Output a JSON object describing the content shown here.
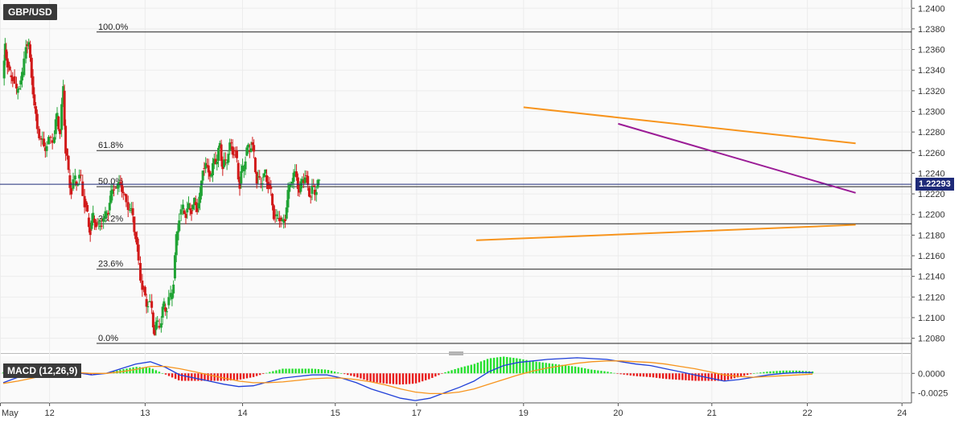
{
  "symbol": "GBP/USD",
  "last_price": "1.22293",
  "chart_data": [
    {
      "type": "candlestick",
      "title": "GBP/USD",
      "x_tick_labels": [
        "May",
        "12",
        "13",
        "14",
        "15",
        "17",
        "19",
        "20",
        "21",
        "22",
        "24"
      ],
      "y_tick_labels": [
        "1.2080",
        "1.2100",
        "1.2120",
        "1.2140",
        "1.2160",
        "1.2180",
        "1.2200",
        "1.2220",
        "1.2240",
        "1.2260",
        "1.2280",
        "1.2300",
        "1.2320",
        "1.2340",
        "1.2360",
        "1.2380",
        "1.2400"
      ],
      "ylim": [
        1.2068,
        1.2408
      ],
      "last_price": 1.22293,
      "candle_colors": {
        "up": "#21a335",
        "down": "#d11a1a"
      },
      "fibonacci_levels": [
        {
          "label": "100.0%",
          "price": 1.2377
        },
        {
          "label": "61.8%",
          "price": 1.2262
        },
        {
          "label": "50.0%",
          "price": 1.2227
        },
        {
          "label": "38.2%",
          "price": 1.2191
        },
        {
          "label": "23.6%",
          "price": 1.2147
        },
        {
          "label": "0.0%",
          "price": 1.2075
        }
      ],
      "trendlines": [
        {
          "name": "upper-triangle-line",
          "color": "#f7941d",
          "start": {
            "date": "May 19",
            "price": 1.2304
          },
          "end": {
            "date": "May 22",
            "price": 1.2269
          }
        },
        {
          "name": "lower-triangle-line",
          "color": "#f7941d",
          "start": {
            "date": "May 18",
            "price": 1.2175
          },
          "end": {
            "date": "May 22",
            "price": 1.219
          }
        },
        {
          "name": "resistance-line",
          "color": "#9b1c96",
          "start": {
            "date": "May 20",
            "price": 1.2288
          },
          "end": {
            "date": "May 22",
            "price": 1.2221
          }
        }
      ],
      "segments": [
        {
          "from": "May 11",
          "points": [
            [
              0,
              1.2332
            ],
            [
              0.02,
              1.236
            ],
            [
              0.045,
              1.2348
            ],
            [
              0.07,
              1.2335
            ],
            [
              0.1,
              1.2334
            ],
            [
              0.14,
              1.2318
            ],
            [
              0.17,
              1.2326
            ],
            [
              0.2,
              1.2335
            ],
            [
              0.24,
              1.2365
            ],
            [
              0.27,
              1.2365
            ],
            [
              0.3,
              1.2334
            ],
            [
              0.33,
              1.2305
            ],
            [
              0.36,
              1.2283
            ],
            [
              0.4,
              1.2273
            ],
            [
              0.43,
              1.2265
            ],
            [
              0.46,
              1.2268
            ],
            [
              0.5,
              1.2272
            ],
            [
              0.54,
              1.2278
            ],
            [
              0.57,
              1.2295
            ],
            [
              0.6,
              1.2282
            ],
            [
              0.635,
              1.232
            ],
            [
              0.66,
              1.2264
            ],
            [
              0.69,
              1.2238
            ],
            [
              0.72,
              1.2225
            ],
            [
              0.76,
              1.2232
            ],
            [
              0.79,
              1.2235
            ],
            [
              0.82,
              1.2232
            ],
            [
              0.86,
              1.2213
            ],
            [
              0.89,
              1.2197
            ],
            [
              0.92,
              1.2186
            ],
            [
              0.95,
              1.2196
            ],
            [
              0.98,
              1.2193
            ],
            [
              1.01,
              1.2188
            ],
            [
              1.04,
              1.2193
            ],
            [
              1.08,
              1.2199
            ],
            [
              1.11,
              1.2204
            ],
            [
              1.14,
              1.222
            ],
            [
              1.17,
              1.2226
            ],
            [
              1.21,
              1.2228
            ],
            [
              1.24,
              1.223
            ],
            [
              1.27,
              1.222
            ],
            [
              1.3,
              1.2212
            ],
            [
              1.34,
              1.2205
            ],
            [
              1.37,
              1.2198
            ],
            [
              1.4,
              1.2178
            ],
            [
              1.43,
              1.2153
            ],
            [
              1.47,
              1.213
            ],
            [
              1.5,
              1.2118
            ],
            [
              1.53,
              1.2115
            ],
            [
              1.57,
              1.2105
            ],
            [
              1.6,
              1.2088
            ],
            [
              1.63,
              1.2092
            ],
            [
              1.67,
              1.21
            ],
            [
              1.7,
              1.211
            ],
            [
              1.73,
              1.2112
            ],
            [
              1.77,
              1.2118
            ],
            [
              1.8,
              1.2138
            ],
            [
              1.83,
              1.2175
            ],
            [
              1.86,
              1.22
            ],
            [
              1.9,
              1.2204
            ],
            [
              1.93,
              1.2202
            ],
            [
              1.96,
              1.2206
            ],
            [
              1.99,
              1.2205
            ],
            [
              2.02,
              1.2212
            ],
            [
              2.05,
              1.2206
            ],
            [
              2.08,
              1.2218
            ],
            [
              2.11,
              1.2245
            ],
            [
              2.14,
              1.2248
            ],
            [
              2.17,
              1.2242
            ],
            [
              2.2,
              1.2238
            ],
            [
              2.23,
              1.2254
            ],
            [
              2.26,
              1.2252
            ],
            [
              2.29,
              1.2268
            ],
            [
              2.32,
              1.2246
            ],
            [
              2.35,
              1.225
            ],
            [
              2.38,
              1.2262
            ],
            [
              2.41,
              1.2266
            ],
            [
              2.44,
              1.2262
            ],
            [
              2.47,
              1.225
            ],
            [
              2.5,
              1.223
            ],
            [
              2.53,
              1.2242
            ],
            [
              2.56,
              1.2257
            ],
            [
              2.59,
              1.2262
            ],
            [
              2.62,
              1.227
            ],
            [
              2.65,
              1.2255
            ],
            [
              2.68,
              1.2236
            ],
            [
              2.71,
              1.223
            ],
            [
              2.74,
              1.2236
            ],
            [
              2.77,
              1.2238
            ],
            [
              2.8,
              1.223
            ],
            [
              2.83,
              1.222
            ],
            [
              2.86,
              1.22
            ],
            [
              2.89,
              1.2196
            ],
            [
              2.92,
              1.2197
            ],
            [
              2.95,
              1.2192
            ],
            [
              2.98,
              1.2196
            ],
            [
              3.01,
              1.2222
            ],
            [
              3.04,
              1.223
            ],
            [
              3.07,
              1.224
            ],
            [
              3.1,
              1.2236
            ],
            [
              3.13,
              1.2222
            ],
            [
              3.16,
              1.2233
            ],
            [
              3.19,
              1.2238
            ],
            [
              3.22,
              1.2226
            ],
            [
              3.25,
              1.222
            ],
            [
              3.28,
              1.2224
            ],
            [
              3.31,
              1.2226
            ],
            [
              3.34,
              1.2229
            ]
          ]
        }
      ],
      "note_units": "segment x = trading-day index relative to chart start (May 11 = 0)"
    },
    {
      "type": "line+histogram",
      "title": "MACD (12,26,9)",
      "y_tick_labels": [
        "0.0000",
        "-0.0025"
      ],
      "ylim": [
        -0.0038,
        0.0022
      ],
      "series": [
        {
          "color": "#1f3fd8",
          "values": [
            -0.0012,
            -0.0005,
            0.0002,
            0.0006,
            0.0004,
            0.0001,
            -0.0002,
            0.0,
            0.0006,
            0.0012,
            0.0015,
            0.0008,
            -0.0002,
            -0.0006,
            -0.001,
            -0.0014,
            -0.0017,
            -0.0016,
            -0.0011,
            -0.0006,
            -0.0004,
            -0.0002,
            -0.0002,
            -0.0006,
            -0.0012,
            -0.002,
            -0.0026,
            -0.0032,
            -0.0035,
            -0.0032,
            -0.0025,
            -0.0018,
            -0.001,
            0.0002,
            0.001,
            0.0014,
            0.0016,
            0.0018,
            0.0019,
            0.002,
            0.0019,
            0.0018,
            0.0015,
            0.0012,
            0.001,
            0.0006,
            0.0002,
            -0.0002,
            -0.0006,
            -0.001,
            -0.0008,
            -0.0005,
            -0.0002,
            0.0,
            0.0001,
            0.0001
          ]
        },
        {
          "color": "#f7941d",
          "values": [
            -0.0013,
            -0.001,
            -0.0006,
            -0.0002,
            0.0,
            0.0001,
            0.0,
            0.0,
            0.0002,
            0.0005,
            0.0009,
            0.0009,
            0.0006,
            0.0002,
            -0.0002,
            -0.0006,
            -0.001,
            -0.0012,
            -0.0012,
            -0.0011,
            -0.0009,
            -0.0007,
            -0.0006,
            -0.0006,
            -0.0008,
            -0.0011,
            -0.0015,
            -0.002,
            -0.0024,
            -0.0026,
            -0.0026,
            -0.0024,
            -0.002,
            -0.0014,
            -0.0008,
            -0.0002,
            0.0003,
            0.0007,
            0.001,
            0.0013,
            0.0015,
            0.0016,
            0.0016,
            0.0015,
            0.0014,
            0.0012,
            0.0009,
            0.0006,
            0.0002,
            -0.0002,
            -0.0004,
            -0.0005,
            -0.0004,
            -0.0003,
            -0.0002,
            -0.0001
          ]
        }
      ]
    }
  ]
}
